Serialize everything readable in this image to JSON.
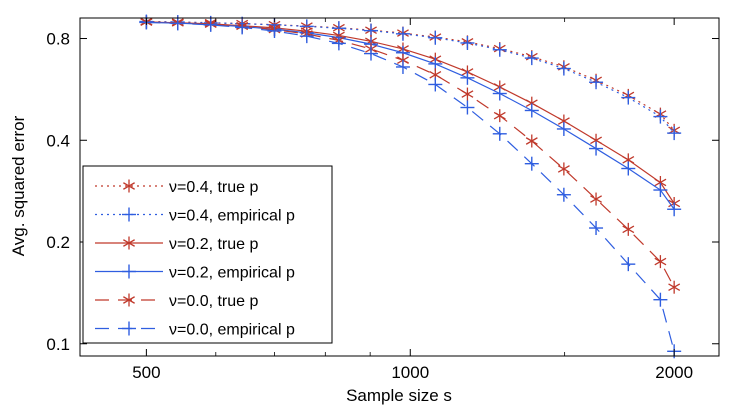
{
  "chart_data": {
    "type": "line",
    "title": "",
    "xlabel": "Sample size s",
    "ylabel": "Avg. squared error",
    "xscale": "log",
    "yscale": "log",
    "xlim": [
      420,
      2250
    ],
    "ylim": [
      0.092,
      0.92
    ],
    "xticks": [
      500,
      1000,
      2000
    ],
    "xtick_labels": [
      "500",
      "1000",
      "2000"
    ],
    "yticks": [
      0.1,
      0.2,
      0.4,
      0.8
    ],
    "ytick_labels": [
      "0.1",
      "0.2",
      "0.4",
      "0.8"
    ],
    "grid": false,
    "legend_position": "lower-left",
    "x": [
      500,
      543,
      592,
      643,
      700,
      762,
      829,
      902,
      981,
      1068,
      1162,
      1265,
      1376,
      1497,
      1629,
      1773,
      1929,
      2000
    ],
    "series": [
      {
        "name": "ν=0.4, true p",
        "color": "#c0392b",
        "line": "dotted",
        "marker": "asterisk",
        "values": [
          0.898,
          0.895,
          0.891,
          0.886,
          0.879,
          0.871,
          0.861,
          0.847,
          0.83,
          0.808,
          0.782,
          0.747,
          0.707,
          0.66,
          0.602,
          0.543,
          0.478,
          0.428
        ]
      },
      {
        "name": "ν=0.4, empirical p",
        "color": "#2f5ee0",
        "line": "dotted",
        "marker": "plus",
        "values": [
          0.898,
          0.895,
          0.89,
          0.885,
          0.878,
          0.869,
          0.858,
          0.844,
          0.826,
          0.804,
          0.776,
          0.741,
          0.7,
          0.652,
          0.594,
          0.535,
          0.47,
          0.42
        ]
      },
      {
        "name": "ν=0.2, true p",
        "color": "#c0392b",
        "line": "solid",
        "marker": "asterisk",
        "values": [
          0.895,
          0.891,
          0.884,
          0.873,
          0.86,
          0.841,
          0.817,
          0.785,
          0.745,
          0.695,
          0.637,
          0.575,
          0.515,
          0.456,
          0.4,
          0.35,
          0.3,
          0.26
        ]
      },
      {
        "name": "ν=0.2, empirical p",
        "color": "#2f5ee0",
        "line": "solid",
        "marker": "plus",
        "values": [
          0.893,
          0.888,
          0.88,
          0.868,
          0.852,
          0.832,
          0.805,
          0.77,
          0.726,
          0.673,
          0.612,
          0.55,
          0.49,
          0.432,
          0.378,
          0.33,
          0.285,
          0.25
        ]
      },
      {
        "name": "ν=0.0, true p",
        "color": "#c0392b",
        "line": "dashed",
        "marker": "asterisk",
        "values": [
          0.895,
          0.89,
          0.882,
          0.869,
          0.85,
          0.825,
          0.79,
          0.745,
          0.69,
          0.625,
          0.548,
          0.473,
          0.398,
          0.329,
          0.268,
          0.218,
          0.175,
          0.147
        ]
      },
      {
        "name": "ν=0.0, empirical p",
        "color": "#2f5ee0",
        "line": "dashed",
        "marker": "plus",
        "values": [
          0.893,
          0.887,
          0.878,
          0.863,
          0.842,
          0.813,
          0.774,
          0.722,
          0.659,
          0.585,
          0.5,
          0.418,
          0.341,
          0.276,
          0.22,
          0.172,
          0.135,
          0.095
        ]
      }
    ]
  }
}
